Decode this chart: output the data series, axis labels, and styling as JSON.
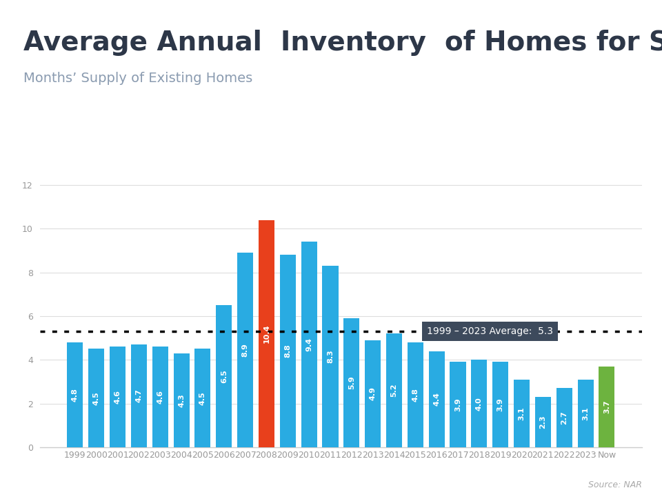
{
  "title": "Average Annual  Inventory  of Homes for Sale",
  "subtitle": "Months’ Supply of Existing Homes",
  "source": "Source: NAR",
  "categories": [
    "1999",
    "2000",
    "2001",
    "2002",
    "2003",
    "2004",
    "2005",
    "2006",
    "2007",
    "2008",
    "2009",
    "2010",
    "2011",
    "2012",
    "2013",
    "2014",
    "2015",
    "2016",
    "2017",
    "2018",
    "2019",
    "2020",
    "2021",
    "2022",
    "2023",
    "Now"
  ],
  "values": [
    4.8,
    4.5,
    4.6,
    4.7,
    4.6,
    4.3,
    4.5,
    6.5,
    8.9,
    10.4,
    8.8,
    9.4,
    8.3,
    5.9,
    4.9,
    5.2,
    4.8,
    4.4,
    3.9,
    4.0,
    3.9,
    3.1,
    2.3,
    2.7,
    3.1,
    3.7
  ],
  "bar_colors": [
    "#29ABE2",
    "#29ABE2",
    "#29ABE2",
    "#29ABE2",
    "#29ABE2",
    "#29ABE2",
    "#29ABE2",
    "#29ABE2",
    "#29ABE2",
    "#E8401C",
    "#29ABE2",
    "#29ABE2",
    "#29ABE2",
    "#29ABE2",
    "#29ABE2",
    "#29ABE2",
    "#29ABE2",
    "#29ABE2",
    "#29ABE2",
    "#29ABE2",
    "#29ABE2",
    "#29ABE2",
    "#29ABE2",
    "#29ABE2",
    "#29ABE2",
    "#6DB33F"
  ],
  "average_line": 5.3,
  "average_label": "1999 – 2023 Average:  5.3",
  "ylim": [
    0,
    12.5
  ],
  "yticks": [
    0,
    2,
    4,
    6,
    8,
    10,
    12
  ],
  "header_bar_color": "#29ABE2",
  "header_bar_height": 0.012,
  "background_color": "#FFFFFF",
  "title_color": "#2D3748",
  "subtitle_color": "#8A9BB0",
  "axis_tick_color": "#999999",
  "source_color": "#AAAAAA",
  "grid_color": "#DDDDDD",
  "avg_box_color": "#3D4A5C",
  "title_fontsize": 28,
  "subtitle_fontsize": 14,
  "bar_label_fontsize": 8,
  "tick_fontsize": 9,
  "avg_label_fontsize": 10
}
